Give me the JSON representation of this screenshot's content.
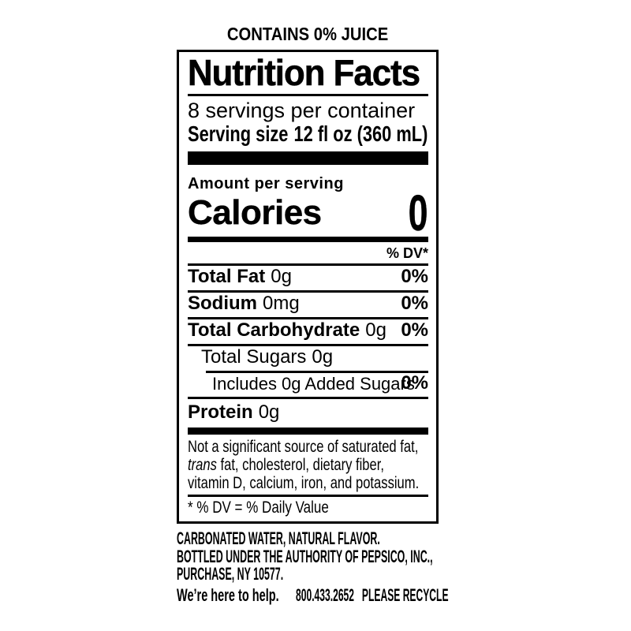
{
  "colors": {
    "ink": "#000000",
    "paper": "#ffffff"
  },
  "top_claim": "CONTAINS 0% JUICE",
  "nutrition_facts": {
    "title": "Nutrition Facts",
    "servings_per_container": "8 servings per container",
    "serving_size_label": "Serving size",
    "serving_size_value": "12 fl oz (360 mL)",
    "amount_per_serving": "Amount per serving",
    "calories_label": "Calories",
    "calories_value": "0",
    "daily_value_header": "% DV*",
    "rows": [
      {
        "name": "Total Fat",
        "amount": "0g",
        "dv": "0%"
      },
      {
        "name": "Sodium",
        "amount": "0mg",
        "dv": "0%"
      },
      {
        "name": "Total Carbohydrate",
        "amount": "0g",
        "dv": "0%"
      },
      {
        "name": "Total Sugars",
        "amount": "0g",
        "dv": ""
      },
      {
        "name": "Includes 0g Added Sugars",
        "amount": "",
        "dv": "0%"
      },
      {
        "name": "Protein",
        "amount": "0g",
        "dv": ""
      }
    ],
    "disclaimer": {
      "line1": "Not a significant source of saturated fat,",
      "italic_word": "trans",
      "line2_rest": " fat, cholesterol, dietary fiber,",
      "line3": "vitamin D, calcium, iron, and potassium."
    },
    "footnote": "* % DV = % Daily Value"
  },
  "footer": {
    "ingredients": "CARBONATED WATER, NATURAL FLAVOR.",
    "bottler_line1": "BOTTLED UNDER THE AUTHORITY OF PEPSICO, INC.,",
    "bottler_line2": "PURCHASE, NY 10577.",
    "help_label": "We’re here to help.",
    "help_phone": "800.433.2652",
    "recycle": "PLEASE RECYCLE"
  }
}
